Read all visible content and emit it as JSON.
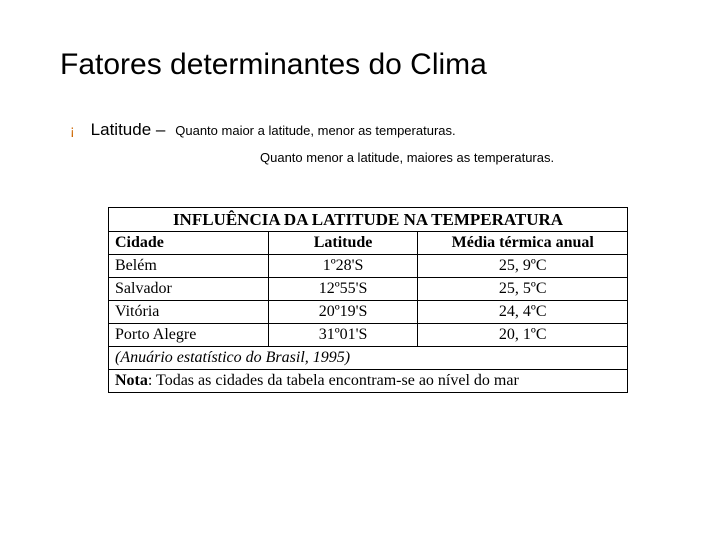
{
  "title": "Fatores determinantes do Clima",
  "bullet_glyph": "¡",
  "factor": "Latitude –",
  "desc1": "Quanto maior a latitude, menor as temperaturas.",
  "desc2": "Quanto menor a latitude, maiores as temperaturas.",
  "table": {
    "title": "INFLUÊNCIA DA LATITUDE NA TEMPERATURA",
    "columns": [
      "Cidade",
      "Latitude",
      "Média térmica anual"
    ],
    "rows": [
      [
        "Belém",
        "1º28'S",
        "25, 9ºC"
      ],
      [
        "Salvador",
        "12º55'S",
        "25, 5ºC"
      ],
      [
        "Vitória",
        "20º19'S",
        "24, 4ºC"
      ],
      [
        "Porto Alegre",
        "31º01'S",
        "20, 1ºC"
      ]
    ],
    "source": "(Anuário estatístico do Brasil, 1995)",
    "note_label": "Nota",
    "note_text": ": Todas as cidades da tabela encontram-se ao nível do mar"
  },
  "colors": {
    "bullet": "#cc6600",
    "text": "#000000",
    "background": "#ffffff",
    "border": "#000000"
  }
}
